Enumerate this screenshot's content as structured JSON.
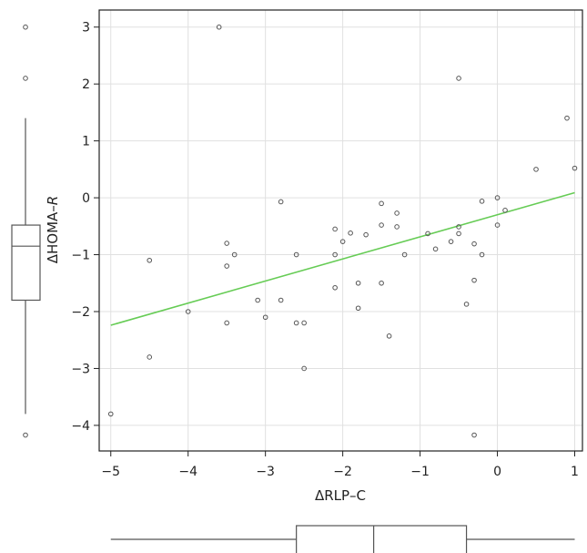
{
  "chart_data": {
    "type": "scatter",
    "title": "",
    "xlabel": "ΔRLP–C",
    "ylabel_main": "ΔHOMA–",
    "ylabel_italic": "R",
    "xlim": [
      -5.15,
      1.1
    ],
    "ylim": [
      -4.45,
      3.3
    ],
    "xticks": [
      -5,
      -4,
      -3,
      -2,
      -1,
      0,
      1
    ],
    "yticks": [
      3,
      2,
      1,
      0,
      -1,
      -2,
      -3,
      -4
    ],
    "xtick_labels": [
      "−5",
      "−4",
      "−3",
      "−2",
      "−1",
      "0",
      "1"
    ],
    "ytick_labels": [
      "3",
      "2",
      "1",
      "0",
      "−1",
      "−2",
      "−3",
      "−4"
    ],
    "grid": true,
    "colors": {
      "points": "#555555",
      "fit_line": "#66cc55",
      "grid": "#e0e0e0",
      "frame": "#222222",
      "box": "#555555"
    },
    "points": [
      {
        "x": -5.0,
        "y": -3.8
      },
      {
        "x": -4.5,
        "y": -1.1
      },
      {
        "x": -4.5,
        "y": -2.8
      },
      {
        "x": -4.0,
        "y": -2.0
      },
      {
        "x": -3.6,
        "y": 3.0
      },
      {
        "x": -3.5,
        "y": -0.8
      },
      {
        "x": -3.5,
        "y": -1.2
      },
      {
        "x": -3.5,
        "y": -2.2
      },
      {
        "x": -3.4,
        "y": -1.0
      },
      {
        "x": -3.1,
        "y": -1.8
      },
      {
        "x": -3.0,
        "y": -2.1
      },
      {
        "x": -2.8,
        "y": -0.07
      },
      {
        "x": -2.8,
        "y": -1.8
      },
      {
        "x": -2.6,
        "y": -1.0
      },
      {
        "x": -2.6,
        "y": -2.2
      },
      {
        "x": -2.5,
        "y": -2.2
      },
      {
        "x": -2.5,
        "y": -3.0
      },
      {
        "x": -2.1,
        "y": -0.55
      },
      {
        "x": -2.1,
        "y": -1.0
      },
      {
        "x": -2.1,
        "y": -1.58
      },
      {
        "x": -2.0,
        "y": -0.77
      },
      {
        "x": -1.9,
        "y": -0.62
      },
      {
        "x": -1.8,
        "y": -1.5
      },
      {
        "x": -1.8,
        "y": -1.94
      },
      {
        "x": -1.7,
        "y": -0.65
      },
      {
        "x": -1.5,
        "y": -0.1
      },
      {
        "x": -1.5,
        "y": -0.48
      },
      {
        "x": -1.5,
        "y": -1.5
      },
      {
        "x": -1.4,
        "y": -2.43
      },
      {
        "x": -1.3,
        "y": -0.27
      },
      {
        "x": -1.3,
        "y": -0.51
      },
      {
        "x": -1.2,
        "y": -1.0
      },
      {
        "x": -0.9,
        "y": -0.63
      },
      {
        "x": -0.8,
        "y": -0.9
      },
      {
        "x": -0.6,
        "y": -0.77
      },
      {
        "x": -0.5,
        "y": 2.1
      },
      {
        "x": -0.5,
        "y": -0.51
      },
      {
        "x": -0.5,
        "y": -0.63
      },
      {
        "x": -0.4,
        "y": -1.87
      },
      {
        "x": -0.3,
        "y": -0.81
      },
      {
        "x": -0.3,
        "y": -1.45
      },
      {
        "x": -0.3,
        "y": -4.17
      },
      {
        "x": -0.2,
        "y": -0.06
      },
      {
        "x": -0.2,
        "y": -1.0
      },
      {
        "x": 0.0,
        "y": 0.0
      },
      {
        "x": 0.0,
        "y": -0.48
      },
      {
        "x": 0.1,
        "y": -0.22
      },
      {
        "x": 0.5,
        "y": 0.5
      },
      {
        "x": 0.9,
        "y": 1.4
      },
      {
        "x": 1.0,
        "y": 0.52
      }
    ],
    "fit_line": {
      "x": [
        -5.0,
        1.0
      ],
      "y": [
        -2.24,
        0.09
      ]
    },
    "y_boxplot": {
      "whisker_low": -3.8,
      "q1": -1.8,
      "median": -0.85,
      "q3": -0.48,
      "whisker_high": 1.4,
      "outliers": [
        3.0,
        2.1,
        -4.17
      ]
    },
    "x_boxplot": {
      "whisker_low": -5.0,
      "q1": -2.6,
      "median": -1.6,
      "q3": -0.4,
      "whisker_high": 1.0,
      "outliers": []
    }
  }
}
